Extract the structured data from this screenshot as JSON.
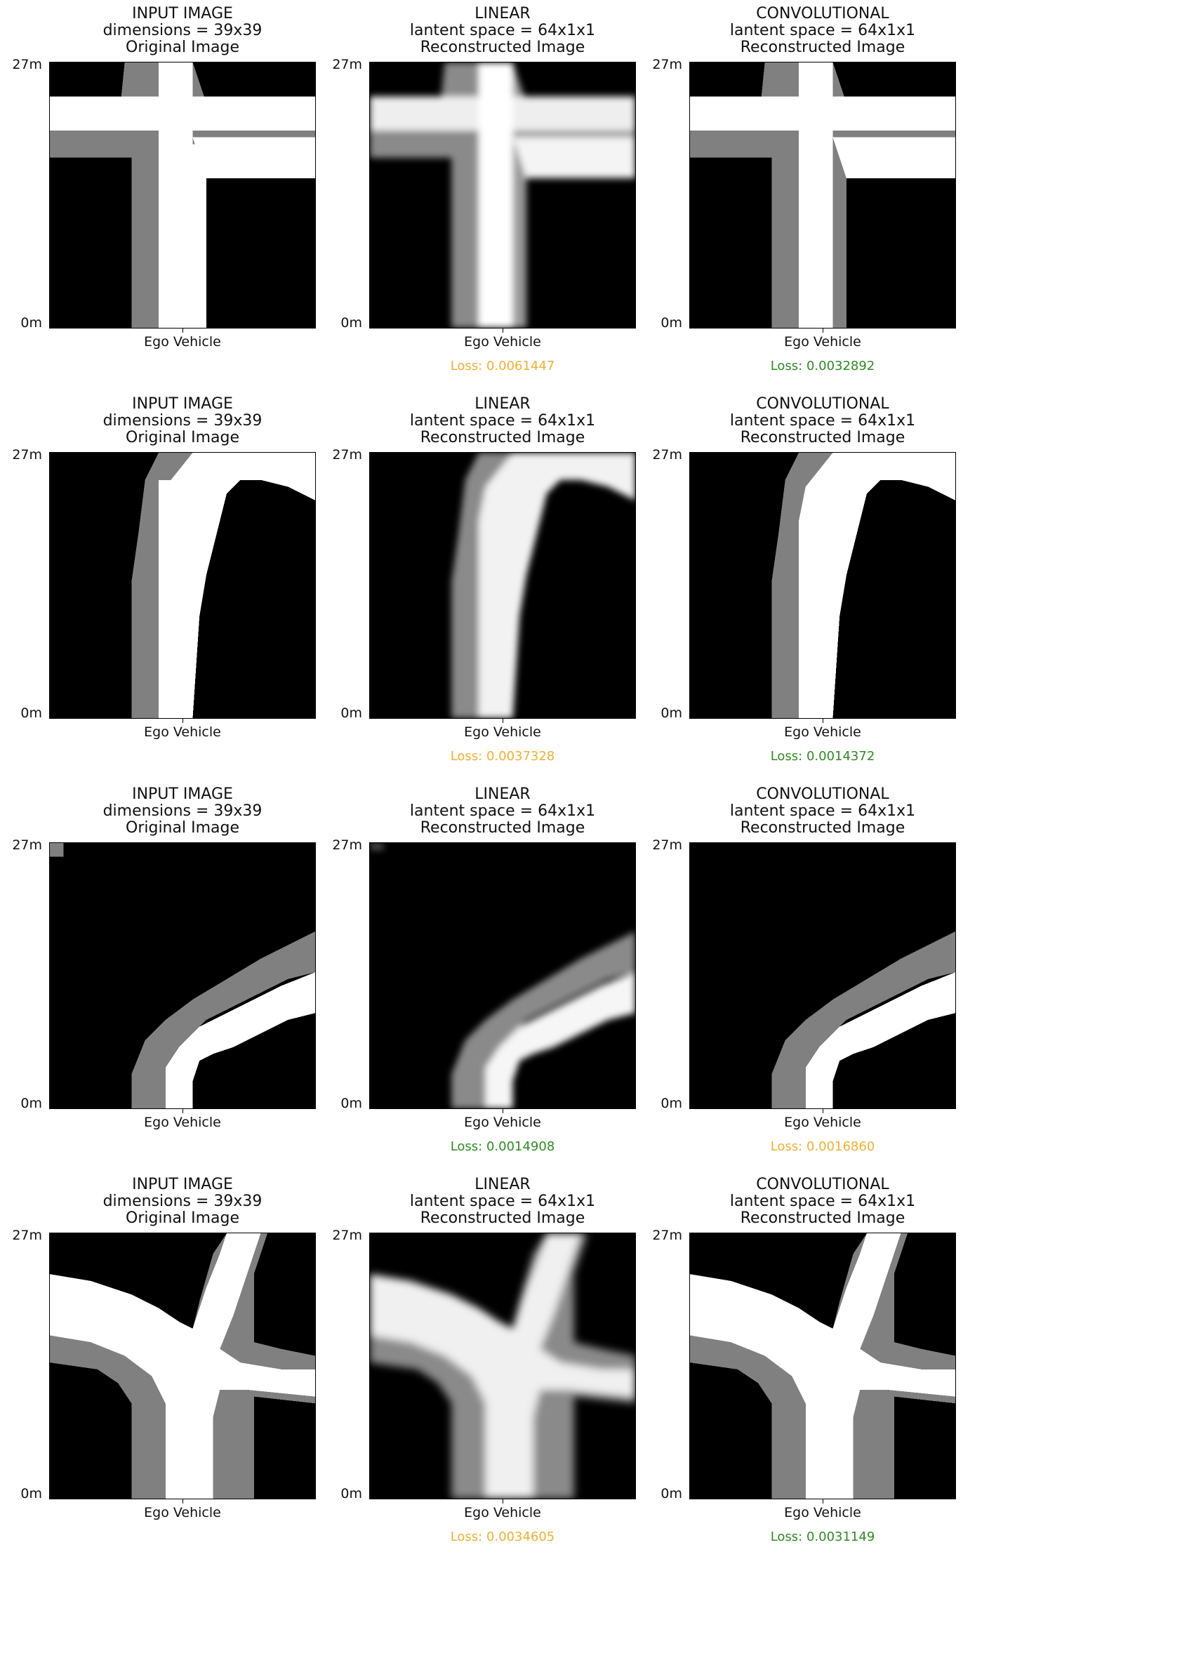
{
  "rows": [
    {
      "input": {
        "title1": "INPUT IMAGE",
        "title2": "dimensions = 39x39",
        "title3": "Original Image",
        "xlabel": "Ego Vehicle",
        "ytop": "27m",
        "ybot": "0m"
      },
      "linear": {
        "title1": "LINEAR",
        "title2": "lantent space = 64x1x1",
        "title3": "Reconstructed Image",
        "xlabel": "Ego Vehicle",
        "ytop": "27m",
        "ybot": "0m",
        "loss": "Loss: 0.0061447",
        "loss_color": "#f0b030"
      },
      "conv": {
        "title1": "CONVOLUTIONAL",
        "title2": "lantent space = 64x1x1",
        "title3": "Reconstructed Image",
        "xlabel": "Ego Vehicle",
        "ytop": "27m",
        "ybot": "0m",
        "loss": "Loss: 0.0032892",
        "loss_color": "#2e8b22"
      }
    },
    {
      "input": {
        "title1": "INPUT IMAGE",
        "title2": "dimensions = 39x39",
        "title3": "Original Image",
        "xlabel": "Ego Vehicle",
        "ytop": "27m",
        "ybot": "0m"
      },
      "linear": {
        "title1": "LINEAR",
        "title2": "lantent space = 64x1x1",
        "title3": "Reconstructed Image",
        "xlabel": "Ego Vehicle",
        "ytop": "27m",
        "ybot": "0m",
        "loss": "Loss: 0.0037328",
        "loss_color": "#f0b030"
      },
      "conv": {
        "title1": "CONVOLUTIONAL",
        "title2": "lantent space = 64x1x1",
        "title3": "Reconstructed Image",
        "xlabel": "Ego Vehicle",
        "ytop": "27m",
        "ybot": "0m",
        "loss": "Loss: 0.0014372",
        "loss_color": "#2e8b22"
      }
    },
    {
      "input": {
        "title1": "INPUT IMAGE",
        "title2": "dimensions = 39x39",
        "title3": "Original Image",
        "xlabel": "Ego Vehicle",
        "ytop": "27m",
        "ybot": "0m"
      },
      "linear": {
        "title1": "LINEAR",
        "title2": "lantent space = 64x1x1",
        "title3": "Reconstructed Image",
        "xlabel": "Ego Vehicle",
        "ytop": "27m",
        "ybot": "0m",
        "loss": "Loss: 0.0014908",
        "loss_color": "#2e8b22"
      },
      "conv": {
        "title1": "CONVOLUTIONAL",
        "title2": "lantent space = 64x1x1",
        "title3": "Reconstructed Image",
        "xlabel": "Ego Vehicle",
        "ytop": "27m",
        "ybot": "0m",
        "loss": "Loss: 0.0016860",
        "loss_color": "#f0b030"
      }
    },
    {
      "input": {
        "title1": "INPUT IMAGE",
        "title2": "dimensions = 39x39",
        "title3": "Original Image",
        "xlabel": "Ego Vehicle",
        "ytop": "27m",
        "ybot": "0m"
      },
      "linear": {
        "title1": "LINEAR",
        "title2": "lantent space = 64x1x1",
        "title3": "Reconstructed Image",
        "xlabel": "Ego Vehicle",
        "ytop": "27m",
        "ybot": "0m",
        "loss": "Loss: 0.0034605",
        "loss_color": "#f0b030"
      },
      "conv": {
        "title1": "CONVOLUTIONAL",
        "title2": "lantent space = 64x1x1",
        "title3": "Reconstructed Image",
        "xlabel": "Ego Vehicle",
        "ytop": "27m",
        "ybot": "0m",
        "loss": "Loss: 0.0031149",
        "loss_color": "#2e8b22"
      }
    }
  ],
  "colors": {
    "road": "#ffffff",
    "lane": "#808080",
    "background": "#000000",
    "linear_lane": "#9a9a9a"
  }
}
